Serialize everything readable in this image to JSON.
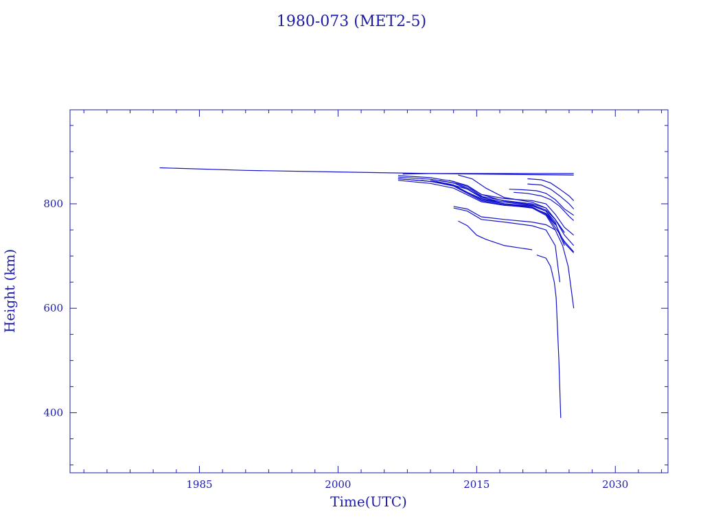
{
  "chart_data": {
    "type": "line",
    "title": "1980-073 (MET2-5)",
    "xlabel": "Time(UTC)",
    "ylabel": "Height (km)",
    "xlim": [
      1971,
      2035.7
    ],
    "ylim": [
      285,
      980
    ],
    "x_ticks": [
      1985,
      2000,
      2015,
      2030
    ],
    "y_ticks": [
      400,
      600,
      800
    ],
    "x_minor_step": 2.5,
    "y_minor_step": 50,
    "grid": false,
    "color": "#1111cc",
    "series": [
      {
        "x": [
          1980.7,
          1990,
          2000,
          2010,
          2020,
          2025.5
        ],
        "y": [
          869,
          864,
          861,
          858,
          856,
          855
        ]
      },
      {
        "x": [
          2007,
          2010,
          2015,
          2020,
          2025.5
        ],
        "y": [
          857,
          858,
          858,
          858,
          858
        ]
      },
      {
        "x": [
          2006.5,
          2010,
          2012.5,
          2014,
          2015.5,
          2018,
          2021,
          2022.5,
          2023.5,
          2024.5,
          2025.5
        ],
        "y": [
          854,
          850,
          843,
          833,
          818,
          810,
          806,
          800,
          780,
          755,
          740
        ]
      },
      {
        "x": [
          2006.5,
          2010,
          2012.5,
          2014,
          2015.5,
          2018,
          2021,
          2022.5,
          2023.5,
          2024.5
        ],
        "y": [
          851,
          847,
          840,
          828,
          814,
          806,
          800,
          792,
          770,
          745
        ]
      },
      {
        "x": [
          2006.5,
          2010,
          2012.5,
          2014,
          2015.5,
          2018,
          2021,
          2022.5,
          2023.5
        ],
        "y": [
          848,
          843,
          835,
          822,
          808,
          800,
          796,
          786,
          760
        ]
      },
      {
        "x": [
          2006.5,
          2010,
          2012.5,
          2014,
          2015.5,
          2018,
          2021,
          2022.5,
          2023.5,
          2024.5,
          2025.5
        ],
        "y": [
          845,
          839,
          830,
          817,
          804,
          797,
          793,
          780,
          755,
          728,
          708
        ]
      },
      {
        "x": [
          2009,
          2012,
          2014,
          2015.5,
          2018,
          2021,
          2022.5,
          2023.5,
          2024,
          2024.5
        ],
        "y": [
          845,
          838,
          828,
          812,
          803,
          797,
          786,
          765,
          740,
          720
        ]
      },
      {
        "x": [
          2010,
          2012.5,
          2014,
          2015.5,
          2018,
          2021,
          2022.5,
          2023.5
        ],
        "y": [
          845,
          836,
          822,
          810,
          800,
          794,
          780,
          760
        ]
      },
      {
        "x": [
          2011,
          2013,
          2014.5,
          2016,
          2018,
          2021,
          2022.5,
          2023.5
        ],
        "y": [
          845,
          838,
          826,
          810,
          800,
          792,
          778,
          750
        ]
      },
      {
        "x": [
          2012,
          2014,
          2015.5,
          2018,
          2021,
          2022.5,
          2023.5,
          2024.5,
          2025.5
        ],
        "y": [
          845,
          835,
          818,
          805,
          798,
          788,
          770,
          740,
          720
        ]
      },
      {
        "x": [
          2013,
          2014.5,
          2016,
          2018,
          2021,
          2022.5,
          2023.5,
          2024.5
        ],
        "y": [
          855,
          848,
          830,
          812,
          803,
          792,
          770,
          745
        ]
      },
      {
        "x": [
          2006.5,
          2010,
          2012.5,
          2014,
          2015.5,
          2018,
          2021,
          2022.5,
          2023.5,
          2024.5,
          2025.5
        ],
        "y": [
          848,
          843,
          834,
          820,
          806,
          798,
          792,
          782,
          762,
          725,
          706
        ]
      },
      {
        "x": [
          2012.5,
          2014,
          2015.5,
          2018,
          2021,
          2022.5,
          2023.5,
          2024.3,
          2024.9,
          2025.5
        ],
        "y": [
          795,
          790,
          775,
          770,
          765,
          760,
          750,
          720,
          680,
          600
        ]
      },
      {
        "x": [
          2012.5,
          2014,
          2015.5,
          2018,
          2021,
          2022.5,
          2023.5,
          2024
        ],
        "y": [
          792,
          786,
          770,
          765,
          758,
          750,
          720,
          650
        ]
      },
      {
        "x": [
          2013,
          2014,
          2015,
          2016,
          2018,
          2021
        ],
        "y": [
          767,
          758,
          740,
          732,
          720,
          712
        ]
      },
      {
        "x": [
          2021.5,
          2022.5,
          2023,
          2023.4,
          2023.6,
          2023.75,
          2023.9,
          2024.1
        ],
        "y": [
          702,
          696,
          680,
          650,
          620,
          560,
          500,
          390
        ]
      },
      {
        "x": [
          2018.5,
          2020,
          2021.5,
          2022.5,
          2023.5,
          2024.5,
          2025.5
        ],
        "y": [
          828,
          827,
          825,
          820,
          808,
          790,
          778
        ]
      },
      {
        "x": [
          2019,
          2020.5,
          2022,
          2023,
          2024,
          2025,
          2025.5
        ],
        "y": [
          822,
          820,
          815,
          808,
          795,
          776,
          768
        ]
      },
      {
        "x": [
          2020.5,
          2022,
          2023,
          2024,
          2025,
          2025.5
        ],
        "y": [
          848,
          846,
          840,
          828,
          815,
          806
        ]
      },
      {
        "x": [
          2020.5,
          2022,
          2023,
          2024,
          2025,
          2025.5
        ],
        "y": [
          838,
          836,
          828,
          815,
          800,
          790
        ]
      }
    ]
  }
}
